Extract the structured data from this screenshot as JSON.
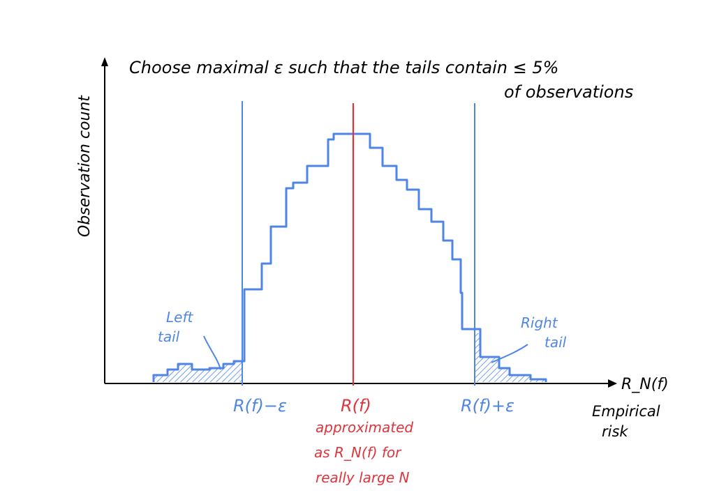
{
  "title": {
    "line1": "Choose maximal ε such that the tails contain ≤ 5%",
    "line2": "of observations"
  },
  "y_axis_label": "Observation count",
  "x_axis": {
    "symbol": "R_N(f)",
    "caption_line1": "Empirical",
    "caption_line2": "risk"
  },
  "lines": {
    "left_bound": "R(f)−ε",
    "center": "R(f)",
    "right_bound": "R(f)+ε"
  },
  "center_note": [
    "approximated",
    "as R_N(f) for",
    "really large N"
  ],
  "tail_labels": {
    "left_line1": "Left",
    "left_line2": "tail",
    "right_line1": "Right",
    "right_line2": "tail"
  },
  "colors": {
    "ink": "#000000",
    "blue": "#4f86e6",
    "red": "#e0343c"
  }
}
